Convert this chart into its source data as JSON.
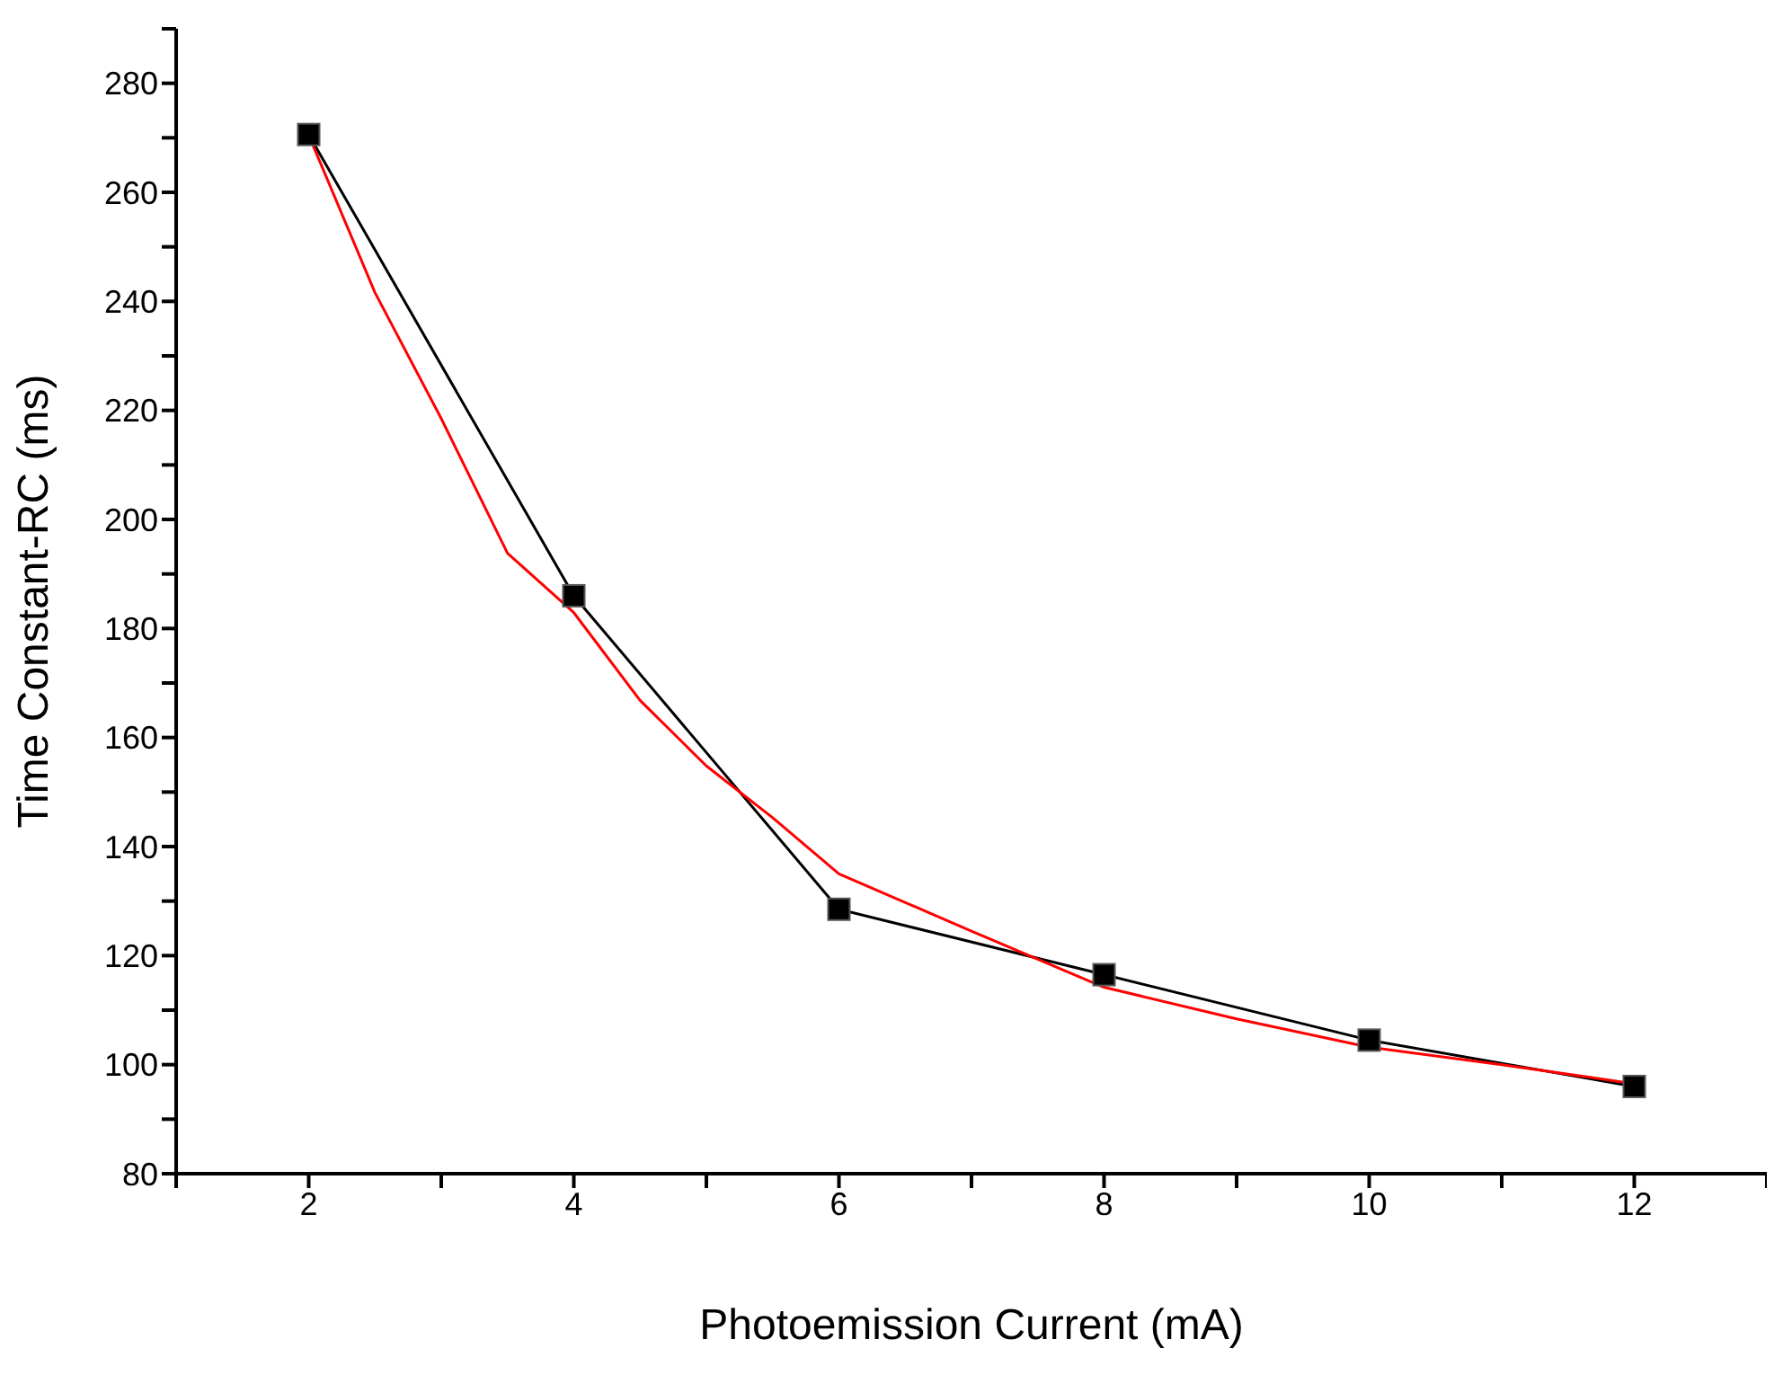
{
  "chart_data": {
    "type": "line",
    "xlabel": "Photoemission Current (mA)",
    "ylabel": "Time Constant-RC (ms)",
    "xlim": [
      1,
      13
    ],
    "xticks": [
      {
        "value": 1,
        "label": null
      },
      2,
      {
        "value": 3,
        "label": null
      },
      4,
      {
        "value": 5,
        "label": null
      },
      6,
      {
        "value": 7,
        "label": null
      },
      8,
      {
        "value": 9,
        "label": null
      },
      10,
      {
        "value": 11,
        "label": null
      },
      12,
      {
        "value": 13,
        "label": null
      }
    ],
    "ylim": [
      80,
      290
    ],
    "yticks": [
      80,
      {
        "value": 90,
        "label": null
      },
      100,
      {
        "value": 110,
        "label": null
      },
      120,
      {
        "value": 130,
        "label": null
      },
      140,
      {
        "value": 150,
        "label": null
      },
      160,
      {
        "value": 170,
        "label": null
      },
      180,
      {
        "value": 190,
        "label": null
      },
      200,
      {
        "value": 210,
        "label": null
      },
      220,
      {
        "value": 230,
        "label": null
      },
      240,
      {
        "value": 250,
        "label": null
      },
      260,
      {
        "value": 270,
        "label": null
      },
      280,
      {
        "value": 290,
        "label": null
      }
    ],
    "grid": false,
    "legend": false,
    "line_style": "solid",
    "series": [
      {
        "color": "#000000",
        "marker": "square",
        "x": [
          2,
          4,
          6,
          8,
          10,
          12
        ],
        "values": [
          270.6,
          186,
          128.5,
          116.5,
          104.5,
          96
        ]
      },
      {
        "color": "#ff0000",
        "marker": "none",
        "x": [
          2,
          2.5,
          3,
          3.5,
          4,
          4.5,
          5,
          5.5,
          6,
          7,
          8,
          9,
          10,
          11,
          12
        ],
        "values": [
          270.5,
          241.6,
          218.5,
          193.8,
          182.9,
          166.8,
          154.8,
          145.3,
          135,
          124.5,
          114.2,
          108.4,
          103.2,
          100,
          96.5
        ]
      }
    ]
  }
}
